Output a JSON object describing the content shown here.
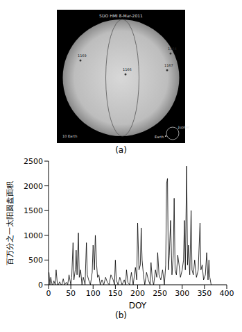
{
  "image": {
    "title": "SDO HMI 8-Mar-2011",
    "labels": [
      "1169",
      "1166",
      "1164",
      "1167"
    ],
    "scale_label": "10 Earth",
    "size_labels": [
      "Jupiter",
      "Earth"
    ],
    "caption": "(a)"
  },
  "chart_data": {
    "type": "line",
    "caption": "(b)",
    "x_label": "DOY",
    "y_label": "百万分之一太阳圆盘面积",
    "color": "#000000",
    "xlim": [
      0,
      400
    ],
    "xticks": [
      0,
      50,
      100,
      150,
      200,
      250,
      300,
      350,
      400
    ],
    "ylim": [
      0,
      2500
    ],
    "yticks": [
      0,
      500,
      1000,
      1500,
      2000,
      2500
    ],
    "grid": false,
    "x": [
      1,
      3,
      5,
      8,
      10,
      12,
      15,
      17,
      20,
      22,
      25,
      28,
      30,
      33,
      36,
      40,
      43,
      46,
      50,
      52,
      55,
      57,
      60,
      62,
      64,
      67,
      69,
      72,
      75,
      78,
      82,
      85,
      87,
      90,
      94,
      98,
      100,
      103,
      105,
      108,
      110,
      113,
      116,
      120,
      124,
      128,
      132,
      136,
      140,
      145,
      148,
      150,
      152,
      156,
      160,
      165,
      170,
      173,
      175,
      178,
      182,
      186,
      190,
      195,
      198,
      200,
      203,
      206,
      208,
      210,
      213,
      216,
      220,
      224,
      228,
      230,
      233,
      236,
      240,
      243,
      245,
      248,
      252,
      256,
      260,
      263,
      265,
      267,
      269,
      271,
      274,
      277,
      280,
      282,
      284,
      287,
      290,
      293,
      296,
      300,
      303,
      305,
      307,
      310,
      312,
      314,
      317,
      320,
      322,
      325,
      328,
      332,
      336,
      340,
      342,
      345,
      348,
      352,
      355,
      358,
      360,
      362,
      365
    ],
    "values": [
      250,
      0,
      150,
      0,
      0,
      80,
      0,
      300,
      0,
      0,
      60,
      0,
      0,
      120,
      0,
      50,
      0,
      200,
      0,
      150,
      850,
      100,
      300,
      700,
      200,
      1050,
      150,
      300,
      0,
      150,
      0,
      850,
      200,
      100,
      0,
      250,
      800,
      300,
      1000,
      400,
      150,
      200,
      0,
      100,
      0,
      150,
      50,
      0,
      200,
      100,
      0,
      500,
      100,
      0,
      150,
      0,
      100,
      0,
      300,
      50,
      0,
      250,
      0,
      350,
      100,
      1250,
      300,
      400,
      1150,
      500,
      200,
      0,
      250,
      100,
      0,
      450,
      100,
      0,
      300,
      150,
      650,
      200,
      100,
      300,
      0,
      400,
      2050,
      2150,
      300,
      600,
      1300,
      200,
      600,
      1750,
      300,
      200,
      600,
      400,
      150,
      300,
      500,
      1300,
      300,
      2400,
      400,
      800,
      200,
      1500,
      300,
      200,
      500,
      150,
      300,
      1250,
      300,
      400,
      100,
      200,
      650,
      100,
      500,
      150,
      0
    ]
  }
}
